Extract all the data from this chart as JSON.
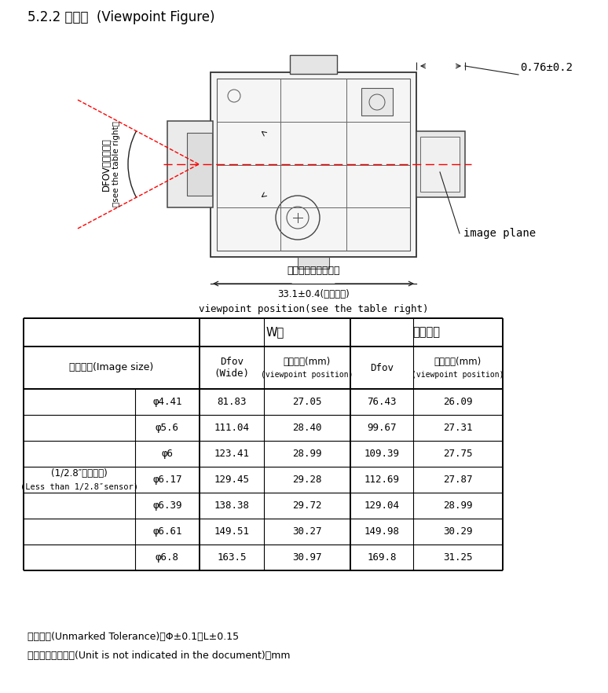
{
  "title_cn": "5.2.2 视点图",
  "title_en": "  (Viewpoint Figure)",
  "dim_label_top": "0.76±0.2",
  "dfov_label_cn": "DFOV（见表格）",
  "dfov_label_en": "（see the table right）",
  "viewpoint_cn": "视点位置（见表格）",
  "viewpoint_dim": "33.1±0.4(最前位置)",
  "viewpoint_en": "viewpoint position(see the table right)",
  "image_plane": "image plane",
  "header_row0_w": "W端",
  "header_row0_max": "最大口径",
  "header_row1_imgsize_cn": "像面大小",
  "header_row1_imgsize_en": "(Image size)",
  "header_row1_dfov_wide": "Dfov\n(Wide)",
  "header_row1_vp_mm": "视点位置",
  "header_row1_vp_mm_sub": "(mm)",
  "header_row1_vp_en": "(viewpoint position)",
  "header_row1_dfov": "Dfov",
  "header_row1_vp2_mm": "视点位置",
  "header_row1_vp2_mm_sub": "(mm)",
  "header_row1_vp2_en": "(viewpoint position)",
  "row_label_cn": "(1/2.8″以下芯片)",
  "row_label_en": "(Less than 1/2.8″sensor)",
  "table_data": [
    [
      "φ4.41",
      "81.83",
      "27.05",
      "76.43",
      "26.09"
    ],
    [
      "φ5.6",
      "111.04",
      "28.40",
      "99.67",
      "27.31"
    ],
    [
      "φ6",
      "123.41",
      "28.99",
      "109.39",
      "27.75"
    ],
    [
      "φ6.17",
      "129.45",
      "29.28",
      "112.69",
      "27.87"
    ],
    [
      "φ6.39",
      "138.38",
      "29.72",
      "129.04",
      "28.99"
    ],
    [
      "φ6.61",
      "149.51",
      "30.27",
      "149.98",
      "30.29"
    ],
    [
      "φ6.8",
      "163.5",
      "30.97",
      "169.8",
      "31.25"
    ]
  ],
  "footer1": "未注公差(Unmarked Tolerance)：Φ±0.1，L±0.15",
  "footer2": "本规格书未注单位(Unit is not indicated in the document)：mm",
  "bg_color": "#ffffff",
  "text_color": "#000000",
  "table_line_color": "#000000"
}
